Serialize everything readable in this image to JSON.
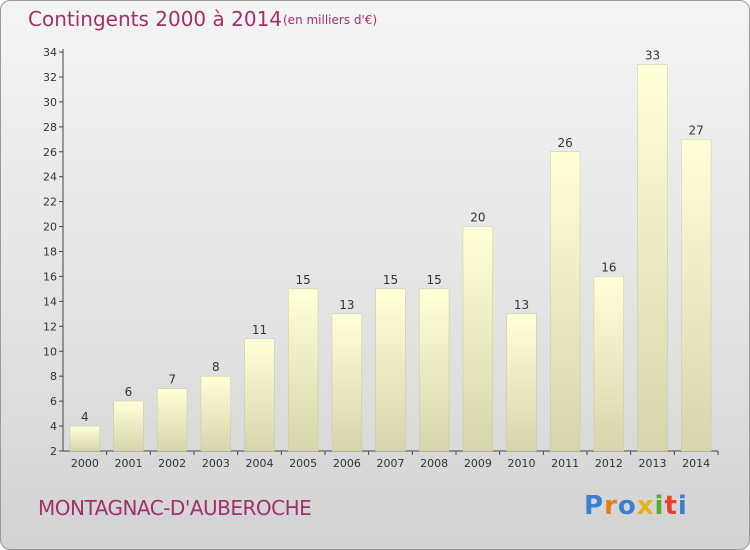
{
  "title": "Contingents 2000 à 2014",
  "subtitle": "(en milliers d'€)",
  "commune": "MONTAGNAC-D'AUBEROCHE",
  "logo": {
    "letters": [
      "P",
      "r",
      "o",
      "x",
      "i",
      "t",
      "i"
    ],
    "colors": [
      "#3a7fd0",
      "#e87a1e",
      "#3a7fd0",
      "#e8b21e",
      "#5aa832",
      "#e8402e",
      "#3a7fd0"
    ]
  },
  "colors": {
    "bar_top": "#ffffd8",
    "bar_bottom": "#d6d6ad",
    "title": "#a0306a"
  },
  "chart_data": {
    "type": "bar",
    "categories": [
      "2000",
      "2001",
      "2002",
      "2003",
      "2004",
      "2005",
      "2006",
      "2007",
      "2008",
      "2009",
      "2010",
      "2011",
      "2012",
      "2013",
      "2014"
    ],
    "values": [
      4,
      6,
      7,
      8,
      11,
      15,
      13,
      15,
      15,
      20,
      13,
      26,
      16,
      33,
      27
    ],
    "title": "Contingents 2000 à 2014",
    "xlabel": "",
    "ylabel": "",
    "ylim": [
      2,
      34
    ],
    "yticks": [
      2,
      4,
      6,
      8,
      10,
      12,
      14,
      16,
      18,
      20,
      22,
      24,
      26,
      28,
      30,
      32,
      34
    ],
    "grid": false,
    "legend": "none"
  }
}
